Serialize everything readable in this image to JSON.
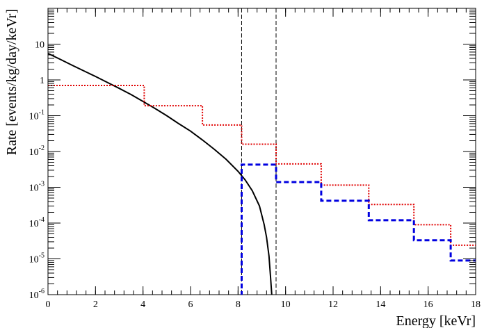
{
  "chart_data": {
    "type": "line",
    "title": "",
    "xlabel": "Energy [keVr]",
    "ylabel": "Rate [events/kg/day/keVr]",
    "x_range": [
      0,
      18
    ],
    "y_range": [
      1e-06,
      100
    ],
    "y_scale": "log",
    "x_ticks": [
      0,
      2,
      4,
      6,
      8,
      10,
      12,
      14,
      16,
      18
    ],
    "x_tick_labels": [
      "0",
      "2",
      "4",
      "6",
      "8",
      "10",
      "12",
      "14",
      "16",
      "18"
    ],
    "y_ticks": [
      1e-06,
      1e-05,
      0.0001,
      0.001,
      0.01,
      0.1,
      1,
      10
    ],
    "y_tick_labels": [
      {
        "base": "10",
        "exp": "-6"
      },
      {
        "base": "10",
        "exp": "-5"
      },
      {
        "base": "10",
        "exp": "-4"
      },
      {
        "base": "10",
        "exp": "-3"
      },
      {
        "base": "10",
        "exp": "-2"
      },
      {
        "base": "10",
        "exp": "-1"
      },
      {
        "base": "1",
        "exp": ""
      },
      {
        "base": "10",
        "exp": ""
      }
    ],
    "vertical_lines": [
      8.15,
      9.6
    ],
    "series": [
      {
        "style": "solid",
        "color": "#000000",
        "points": [
          [
            0,
            5.5
          ],
          [
            0.5,
            3.8
          ],
          [
            1,
            2.6
          ],
          [
            1.5,
            1.8
          ],
          [
            2,
            1.25
          ],
          [
            2.5,
            0.85
          ],
          [
            3,
            0.58
          ],
          [
            3.5,
            0.39
          ],
          [
            4,
            0.25
          ],
          [
            4.5,
            0.16
          ],
          [
            5,
            0.1
          ],
          [
            5.5,
            0.06
          ],
          [
            6,
            0.037
          ],
          [
            6.5,
            0.021
          ],
          [
            7,
            0.0115
          ],
          [
            7.5,
            0.006
          ],
          [
            8,
            0.0028
          ],
          [
            8.3,
            0.0016
          ],
          [
            8.6,
            0.0008
          ],
          [
            8.9,
            0.0003
          ],
          [
            9.1,
            9e-05
          ],
          [
            9.2,
            4e-05
          ],
          [
            9.3,
            1.2e-05
          ],
          [
            9.37,
            3e-06
          ],
          [
            9.42,
            1e-06
          ]
        ]
      },
      {
        "style": "dotted-step",
        "color": "#e00000",
        "bins": [
          [
            0,
            4.05,
            0.7
          ],
          [
            4.05,
            6.5,
            0.19
          ],
          [
            6.5,
            8.15,
            0.055
          ],
          [
            8.15,
            9.6,
            0.016
          ],
          [
            9.6,
            11.5,
            0.0045
          ],
          [
            11.5,
            13.5,
            0.00115
          ],
          [
            13.5,
            15.4,
            0.00033
          ],
          [
            15.4,
            16.95,
            9e-05
          ],
          [
            16.95,
            18,
            2.4e-05
          ]
        ]
      },
      {
        "style": "dashed-step",
        "color": "#0000e0",
        "bins": [
          [
            8.15,
            9.6,
            0.0043
          ],
          [
            9.6,
            11.5,
            0.0014
          ],
          [
            11.5,
            13.5,
            0.00042
          ],
          [
            13.5,
            15.4,
            0.00012
          ],
          [
            15.4,
            16.95,
            3.3e-05
          ],
          [
            16.95,
            18,
            9e-06
          ]
        ],
        "start_from": 1e-06
      }
    ]
  }
}
